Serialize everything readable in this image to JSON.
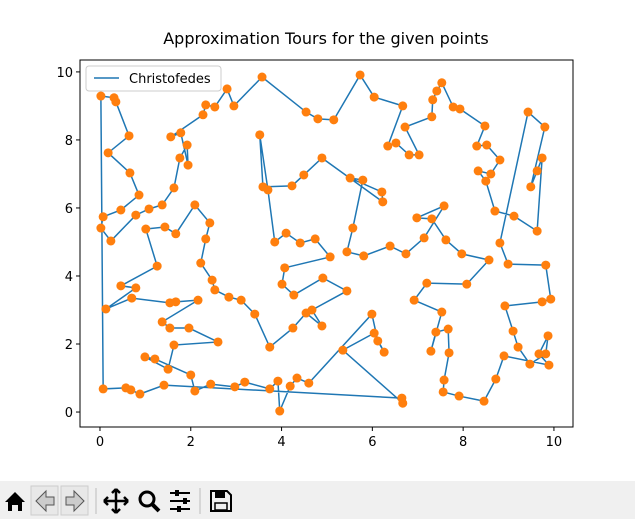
{
  "chart_data": {
    "type": "line",
    "title": "Approximation Tours for the given points",
    "xlim": [
      -0.44,
      10.42
    ],
    "ylim": [
      -0.44,
      10.35
    ],
    "xticks": [
      0,
      2,
      4,
      6,
      8,
      10
    ],
    "yticks": [
      0,
      2,
      4,
      6,
      8,
      10
    ],
    "legend": "upper left",
    "series": [
      {
        "name": "Christofedes",
        "color": "#1f77b4",
        "marker_color": "#ff7f0e",
        "x": [
          0.02,
          0.31,
          0.35,
          0.64,
          0.18,
          0.66,
          0.86,
          0.46,
          0.07,
          0.02,
          0.24,
          0.79,
          1.08,
          1.37,
          1.63,
          1.76,
          1.92,
          1.94,
          1.78,
          1.56,
          2.27,
          2.33,
          2.53,
          2.8,
          2.95,
          3.57,
          4.54,
          4.8,
          5.15,
          5.73,
          6.04,
          6.67,
          6.34,
          6.52,
          6.81,
          7.03,
          6.72,
          7.31,
          7.33,
          7.42,
          7.53,
          7.78,
          7.93,
          8.48,
          8.3,
          8.52,
          8.81,
          8.61,
          8.33,
          8.5,
          8.7,
          9.12,
          9.63,
          9.74,
          9.63,
          9.49,
          9.8,
          9.43,
          8.81,
          8.99,
          9.82,
          9.93,
          9.74,
          8.92,
          9.1,
          9.21,
          9.47,
          9.82,
          9.87,
          9.67,
          9.89,
          8.9,
          8.72,
          8.46,
          7.91,
          7.56,
          7.58,
          7.69,
          7.67,
          7.4,
          7.29,
          7.53,
          6.92,
          7.2,
          8.08,
          8.57,
          7.97,
          7.62,
          7.31,
          6.98,
          7.58,
          7.14,
          6.74,
          6.39,
          5.81,
          5.44,
          5.57,
          5.79,
          5.51,
          6.21,
          6.23,
          4.89,
          4.49,
          4.23,
          3.59,
          3.52,
          3.7,
          3.85,
          4.1,
          4.41,
          4.74,
          5.07,
          4.07,
          4.01,
          4.27,
          4.91,
          5.44,
          4.67,
          4.89,
          4.54,
          4.25,
          3.74,
          3.41,
          3.11,
          2.84,
          2.53,
          2.47,
          2.22,
          2.33,
          2.42,
          2.09,
          1.67,
          1.43,
          1.01,
          1.26,
          0.46,
          0.79,
          0.13,
          0.7,
          1.54,
          1.67,
          2.16,
          1.37,
          1.54,
          1.96,
          2.6,
          1.63,
          1.5,
          0.99,
          1.21,
          2.0,
          2.09,
          2.44,
          2.97,
          3.19,
          3.74,
          3.92,
          3.96,
          4.19,
          4.34,
          4.6,
          5.99,
          6.12,
          6.26,
          6.04,
          5.35,
          6.67,
          6.65,
          1.41,
          0.88,
          0.68,
          0.57,
          0.07
        ],
        "values": [
          9.29,
          9.24,
          9.12,
          8.12,
          7.62,
          7.03,
          6.38,
          5.94,
          5.74,
          5.41,
          5.03,
          5.79,
          5.97,
          6.09,
          6.59,
          7.47,
          7.85,
          7.26,
          8.21,
          8.09,
          8.74,
          9.03,
          8.97,
          9.5,
          9.0,
          9.85,
          8.82,
          8.62,
          8.59,
          9.91,
          9.26,
          9.0,
          7.82,
          7.91,
          7.56,
          7.56,
          8.38,
          8.68,
          9.18,
          9.44,
          9.68,
          8.97,
          8.91,
          8.41,
          7.82,
          7.85,
          7.41,
          7.0,
          7.09,
          6.79,
          5.91,
          5.76,
          5.32,
          7.47,
          7.09,
          6.62,
          8.38,
          8.82,
          4.97,
          4.35,
          4.32,
          3.32,
          3.24,
          3.12,
          2.38,
          1.91,
          1.41,
          1.71,
          2.24,
          1.71,
          1.38,
          1.65,
          0.97,
          0.32,
          0.47,
          0.59,
          0.94,
          1.74,
          2.44,
          2.35,
          1.79,
          2.94,
          3.29,
          3.79,
          3.76,
          4.47,
          4.65,
          5.06,
          5.68,
          5.71,
          6.06,
          5.12,
          4.65,
          4.88,
          4.59,
          4.71,
          5.41,
          6.82,
          6.88,
          6.47,
          6.18,
          7.47,
          6.97,
          6.65,
          6.62,
          8.15,
          6.53,
          5.0,
          5.26,
          4.97,
          5.09,
          4.56,
          4.24,
          3.76,
          3.44,
          3.94,
          3.56,
          3.0,
          2.53,
          2.91,
          2.47,
          1.91,
          2.88,
          3.29,
          3.38,
          3.59,
          3.88,
          4.38,
          5.09,
          5.56,
          6.09,
          5.24,
          5.44,
          5.38,
          4.29,
          3.71,
          3.65,
          3.03,
          3.35,
          3.21,
          3.24,
          3.29,
          2.65,
          2.47,
          2.47,
          2.06,
          1.97,
          1.26,
          1.62,
          1.56,
          1.09,
          0.62,
          0.82,
          0.74,
          0.88,
          0.68,
          0.91,
          0.03,
          0.76,
          1.0,
          0.85,
          2.88,
          2.09,
          1.76,
          2.32,
          1.82,
          0.26,
          0.41,
          0.79,
          0.53,
          0.65,
          0.71,
          0.68
        ]
      }
    ]
  }
}
